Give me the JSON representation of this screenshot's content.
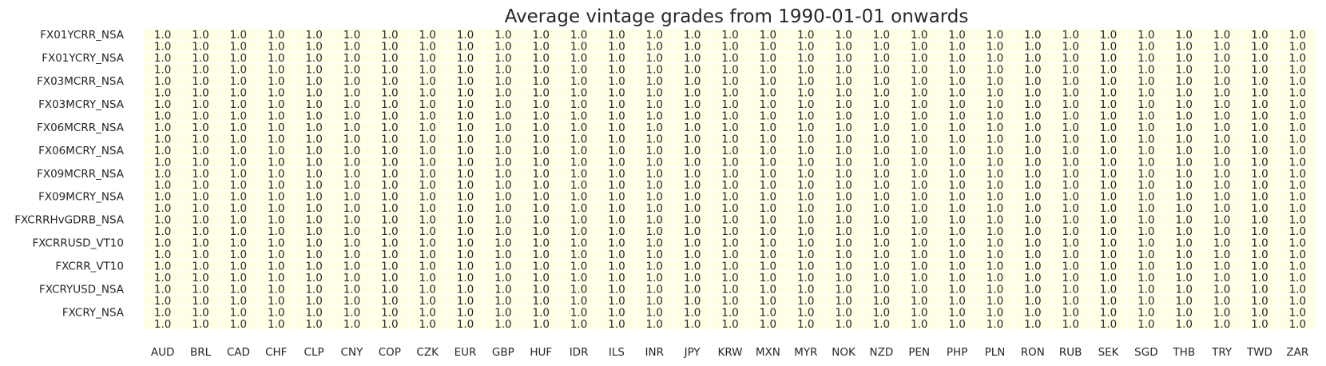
{
  "chart_data": {
    "type": "heatmap",
    "title": "Average vintage grades from 1990-01-01 onwards",
    "columns": [
      "AUD",
      "BRL",
      "CAD",
      "CHF",
      "CLP",
      "CNY",
      "COP",
      "CZK",
      "EUR",
      "GBP",
      "HUF",
      "IDR",
      "ILS",
      "INR",
      "JPY",
      "KRW",
      "MXN",
      "MYR",
      "NOK",
      "NZD",
      "PEN",
      "PHP",
      "PLN",
      "RON",
      "RUB",
      "SEK",
      "SGD",
      "THB",
      "TRY",
      "TWD",
      "ZAR"
    ],
    "row_labels": [
      "FX01YCRR_NSA",
      "FX01YCRY_NSA",
      "FX03MCRR_NSA",
      "FX03MCRY_NSA",
      "FX06MCRR_NSA",
      "FX06MCRY_NSA",
      "FX09MCRR_NSA",
      "FX09MCRY_NSA",
      "FXCRRHvGDRB_NSA",
      "FXCRRUSD_VT10",
      "FXCRR_VT10",
      "FXCRYUSD_NSA",
      "FXCRY_NSA"
    ],
    "rows": 26,
    "value": 1.0,
    "value_label": "1.0",
    "cell_color": "#ffffe5",
    "cell_border_color": "#ffffff",
    "text_color": "#262626",
    "colorbar": false
  }
}
